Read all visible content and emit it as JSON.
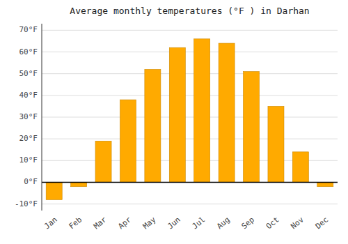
{
  "chart_data": {
    "type": "bar",
    "title": "Average monthly temperatures (°F ) in Darhan",
    "categories": [
      "Jan",
      "Feb",
      "Mar",
      "Apr",
      "May",
      "Jun",
      "Jul",
      "Aug",
      "Sep",
      "Oct",
      "Nov",
      "Dec"
    ],
    "values": [
      -8,
      -2,
      19,
      38,
      52,
      62,
      66,
      64,
      51,
      35,
      14,
      -2
    ],
    "color": "#FFAA00",
    "ylim": [
      -13,
      73
    ],
    "yticks": [
      {
        "value": -10,
        "label": "-10°F"
      },
      {
        "value": 0,
        "label": "0°F"
      },
      {
        "value": 10,
        "label": "10°F"
      },
      {
        "value": 20,
        "label": "20°F"
      },
      {
        "value": 30,
        "label": "30°F"
      },
      {
        "value": 40,
        "label": "40°F"
      },
      {
        "value": 50,
        "label": "50°F"
      },
      {
        "value": 60,
        "label": "60°F"
      },
      {
        "value": 70,
        "label": "70°F"
      }
    ],
    "grid": true
  }
}
